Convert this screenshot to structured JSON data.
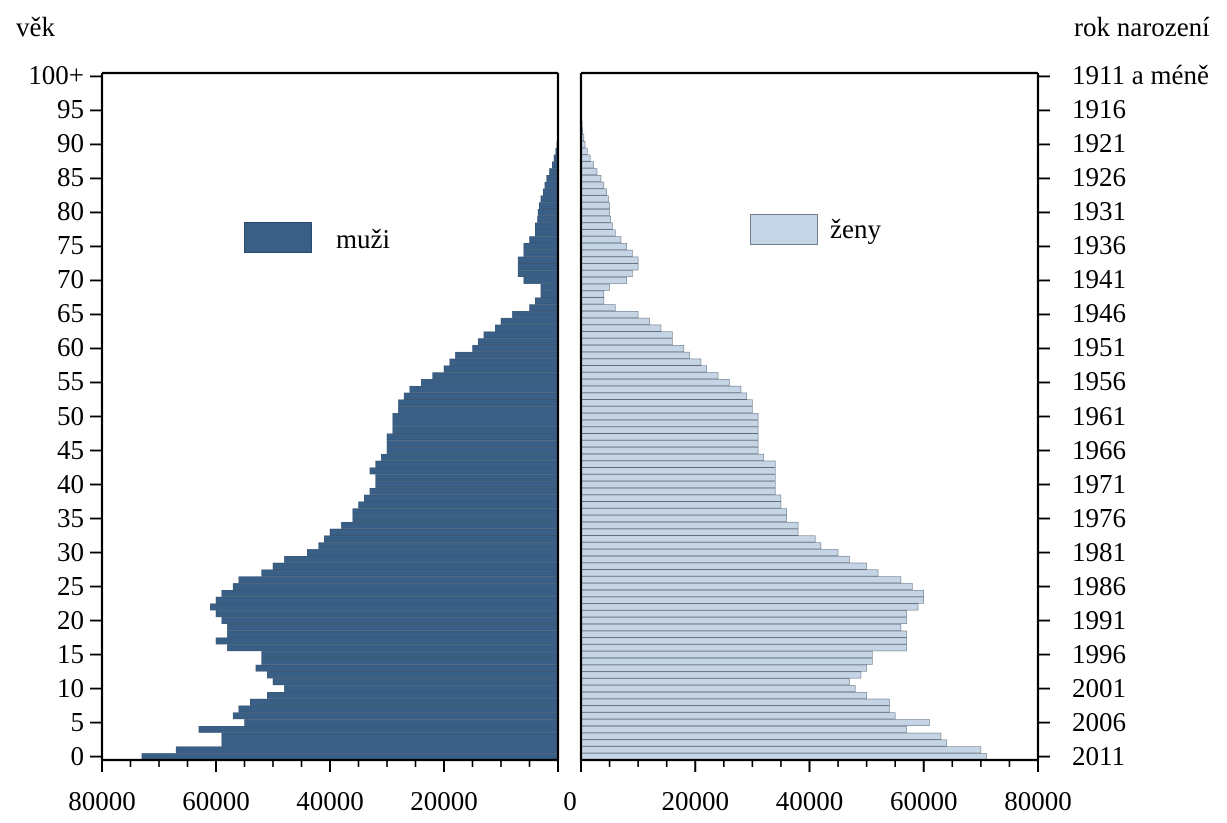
{
  "chart_data": {
    "type": "bar",
    "title": "",
    "left_axis_label": "věk",
    "right_axis_label": "rok narození",
    "age_ticks": [
      "0",
      "5",
      "10",
      "15",
      "20",
      "25",
      "30",
      "35",
      "40",
      "45",
      "50",
      "55",
      "60",
      "65",
      "70",
      "75",
      "80",
      "85",
      "90",
      "95",
      "100+"
    ],
    "birth_year_ticks": [
      "2011",
      "2006",
      "2001",
      "1996",
      "1991",
      "1986",
      "1981",
      "1976",
      "1971",
      "1966",
      "1961",
      "1956",
      "1951",
      "1946",
      "1941",
      "1936",
      "1931",
      "1926",
      "1921",
      "1916",
      "1911 a méně"
    ],
    "x_ticks_left": [
      "80000",
      "60000",
      "40000",
      "20000"
    ],
    "x_ticks_right": [
      "0",
      "20000",
      "40000",
      "60000",
      "80000"
    ],
    "xlim": [
      0,
      80000
    ],
    "ages": [
      0,
      1,
      2,
      3,
      4,
      5,
      6,
      7,
      8,
      9,
      10,
      11,
      12,
      13,
      14,
      15,
      16,
      17,
      18,
      19,
      20,
      21,
      22,
      23,
      24,
      25,
      26,
      27,
      28,
      29,
      30,
      31,
      32,
      33,
      34,
      35,
      36,
      37,
      38,
      39,
      40,
      41,
      42,
      43,
      44,
      45,
      46,
      47,
      48,
      49,
      50,
      51,
      52,
      53,
      54,
      55,
      56,
      57,
      58,
      59,
      60,
      61,
      62,
      63,
      64,
      65,
      66,
      67,
      68,
      69,
      70,
      71,
      72,
      73,
      74,
      75,
      76,
      77,
      78,
      79,
      80,
      81,
      82,
      83,
      84,
      85,
      86,
      87,
      88,
      89,
      90,
      91,
      92,
      93,
      94,
      95,
      96,
      97,
      98,
      99,
      100
    ],
    "series": [
      {
        "name": "muži",
        "color": "#3a5f86",
        "values": [
          73000,
          67000,
          59000,
          59000,
          63000,
          55000,
          57000,
          56000,
          54000,
          51000,
          48000,
          50000,
          51000,
          53000,
          52000,
          52000,
          58000,
          60000,
          58000,
          58000,
          59000,
          60000,
          61000,
          60000,
          59000,
          57000,
          56000,
          52000,
          50000,
          48000,
          44000,
          42000,
          41000,
          40000,
          38000,
          36000,
          36000,
          35000,
          34000,
          33000,
          32000,
          32000,
          33000,
          32000,
          31000,
          30000,
          30000,
          30000,
          29000,
          29000,
          29000,
          28000,
          28000,
          27000,
          26000,
          24000,
          22000,
          20000,
          19000,
          18000,
          15000,
          14000,
          13000,
          11000,
          10000,
          8000,
          5000,
          4000,
          3000,
          3000,
          6000,
          7000,
          7000,
          7000,
          6000,
          6000,
          5000,
          4000,
          4000,
          3600,
          3500,
          3300,
          3000,
          2600,
          2300,
          2000,
          1500,
          1000,
          700,
          400,
          200,
          100,
          60,
          40,
          20,
          10,
          5,
          3,
          2,
          1,
          2
        ]
      },
      {
        "name": "ženy",
        "color": "#c5d5e6",
        "values": [
          71000,
          70000,
          64000,
          63000,
          57000,
          61000,
          55000,
          54000,
          54000,
          50000,
          48000,
          47000,
          49000,
          50000,
          51000,
          51000,
          57000,
          57000,
          57000,
          56000,
          57000,
          57000,
          59000,
          60000,
          60000,
          58000,
          56000,
          52000,
          50000,
          47000,
          45000,
          42000,
          41000,
          38000,
          38000,
          36000,
          36000,
          35000,
          35000,
          34000,
          34000,
          34000,
          34000,
          34000,
          32000,
          31000,
          31000,
          31000,
          31000,
          31000,
          31000,
          30000,
          30000,
          29000,
          28000,
          26000,
          24000,
          22000,
          21000,
          19000,
          18000,
          16000,
          16000,
          14000,
          12000,
          10000,
          6000,
          4000,
          4000,
          5000,
          8000,
          9000,
          10000,
          10000,
          9000,
          8000,
          7000,
          6000,
          5500,
          5200,
          5000,
          5000,
          4800,
          4500,
          4000,
          3500,
          2800,
          2200,
          1600,
          1100,
          700,
          500,
          300,
          200,
          120,
          60,
          30,
          20,
          10,
          5,
          4
        ]
      }
    ]
  }
}
